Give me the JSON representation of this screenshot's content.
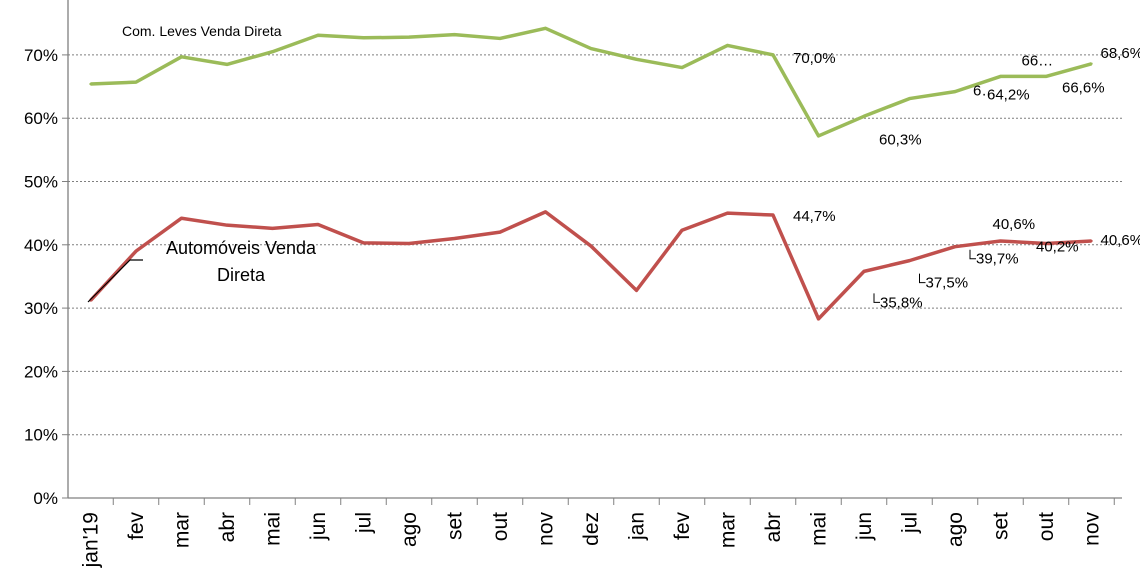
{
  "chart_data": {
    "type": "line",
    "categories": [
      "jan'19",
      "fev",
      "mar",
      "abr",
      "mai",
      "jun",
      "jul",
      "ago",
      "set",
      "out",
      "nov",
      "dez",
      "jan",
      "fev",
      "mar",
      "abr",
      "mai",
      "jun",
      "jul",
      "ago",
      "set",
      "out",
      "nov"
    ],
    "ylim": [
      0,
      0.75
    ],
    "yticks": [
      {
        "value": 0,
        "label": "0%"
      },
      {
        "value": 0.1,
        "label": "10%"
      },
      {
        "value": 0.2,
        "label": "20%"
      },
      {
        "value": 0.3,
        "label": "30%"
      },
      {
        "value": 0.4,
        "label": "40%"
      },
      {
        "value": 0.5,
        "label": "50%"
      },
      {
        "value": 0.6,
        "label": "60%"
      },
      {
        "value": 0.7,
        "label": "70%"
      }
    ],
    "grid": true,
    "series": [
      {
        "name": "Com. Leves Venda Direta",
        "color": "#9bbb59",
        "values": [
          0.654,
          0.657,
          0.697,
          0.685,
          0.705,
          0.731,
          0.727,
          0.728,
          0.732,
          0.726,
          0.742,
          0.71,
          0.693,
          0.68,
          0.715,
          0.7,
          0.572,
          0.603,
          0.631,
          0.642,
          0.666,
          0.666,
          0.686
        ],
        "data_labels": [
          {
            "index": 15,
            "text": "70,0%"
          },
          {
            "index": 17,
            "text": "60,3%"
          },
          {
            "index": 19,
            "text": "6…"
          },
          {
            "index": 19,
            "text": "64,2%"
          },
          {
            "index": 20,
            "text": "66…"
          },
          {
            "index": 21,
            "text": "66,6%"
          },
          {
            "index": 22,
            "text": "68,6%"
          }
        ]
      },
      {
        "name": "Automóveis Venda Direta",
        "color": "#c0504d",
        "values": [
          0.312,
          0.39,
          0.442,
          0.431,
          0.426,
          0.432,
          0.403,
          0.402,
          0.41,
          0.42,
          0.452,
          0.398,
          0.328,
          0.423,
          0.45,
          0.447,
          0.283,
          0.358,
          0.375,
          0.397,
          0.406,
          0.402,
          0.406
        ],
        "data_labels": [
          {
            "index": 15,
            "text": "44,7%"
          },
          {
            "index": 17,
            "text": "35,8%"
          },
          {
            "index": 18,
            "text": "37,5%"
          },
          {
            "index": 19,
            "text": "39,7%"
          },
          {
            "index": 20,
            "text": "40,6%"
          },
          {
            "index": 21,
            "text": "40,2%"
          },
          {
            "index": 22,
            "text": "40,6%"
          }
        ]
      }
    ]
  }
}
